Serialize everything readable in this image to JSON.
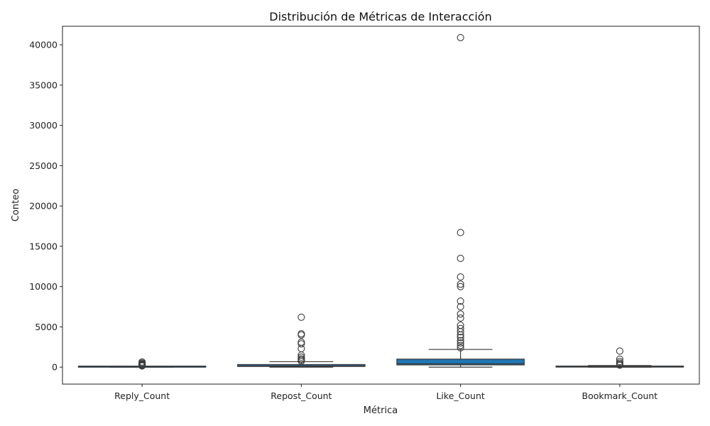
{
  "chart_data": {
    "type": "box",
    "title": "Distribución de Métricas de Interacción",
    "xlabel": "Métrica",
    "ylabel": "Conteo",
    "ylim": [
      -2100,
      42300
    ],
    "yticks": [
      0,
      5000,
      10000,
      15000,
      20000,
      25000,
      30000,
      35000,
      40000
    ],
    "ytick_labels": [
      "0",
      "5000",
      "10000",
      "15000",
      "20000",
      "25000",
      "30000",
      "35000",
      "40000"
    ],
    "grid": false,
    "box_color": "#1f77b4",
    "categories": [
      "Reply_Count",
      "Repost_Count",
      "Like_Count",
      "Bookmark_Count"
    ],
    "boxes": [
      {
        "category": "Reply_Count",
        "whisker_low": 0,
        "q1": 5,
        "median": 15,
        "q3": 40,
        "whisker_high": 95,
        "outliers": [
          150,
          200,
          260,
          330,
          420,
          520,
          650
        ]
      },
      {
        "category": "Repost_Count",
        "whisker_low": 0,
        "q1": 90,
        "median": 170,
        "q3": 330,
        "whisker_high": 680,
        "outliers": [
          750,
          900,
          1050,
          1250,
          1500,
          2300,
          2900,
          3100,
          4000,
          4150,
          6200
        ]
      },
      {
        "category": "Like_Count",
        "whisker_low": 0,
        "q1": 280,
        "median": 420,
        "q3": 1000,
        "whisker_high": 2200,
        "outliers": [
          2400,
          2700,
          3000,
          3300,
          3700,
          4000,
          4400,
          4800,
          5200,
          6100,
          6600,
          7500,
          8200,
          10000,
          10300,
          11200,
          13500,
          16700,
          40900
        ]
      },
      {
        "category": "Bookmark_Count",
        "whisker_low": 0,
        "q1": 10,
        "median": 40,
        "q3": 110,
        "whisker_high": 200,
        "outliers": [
          250,
          350,
          500,
          700,
          1000,
          2000
        ]
      }
    ]
  }
}
